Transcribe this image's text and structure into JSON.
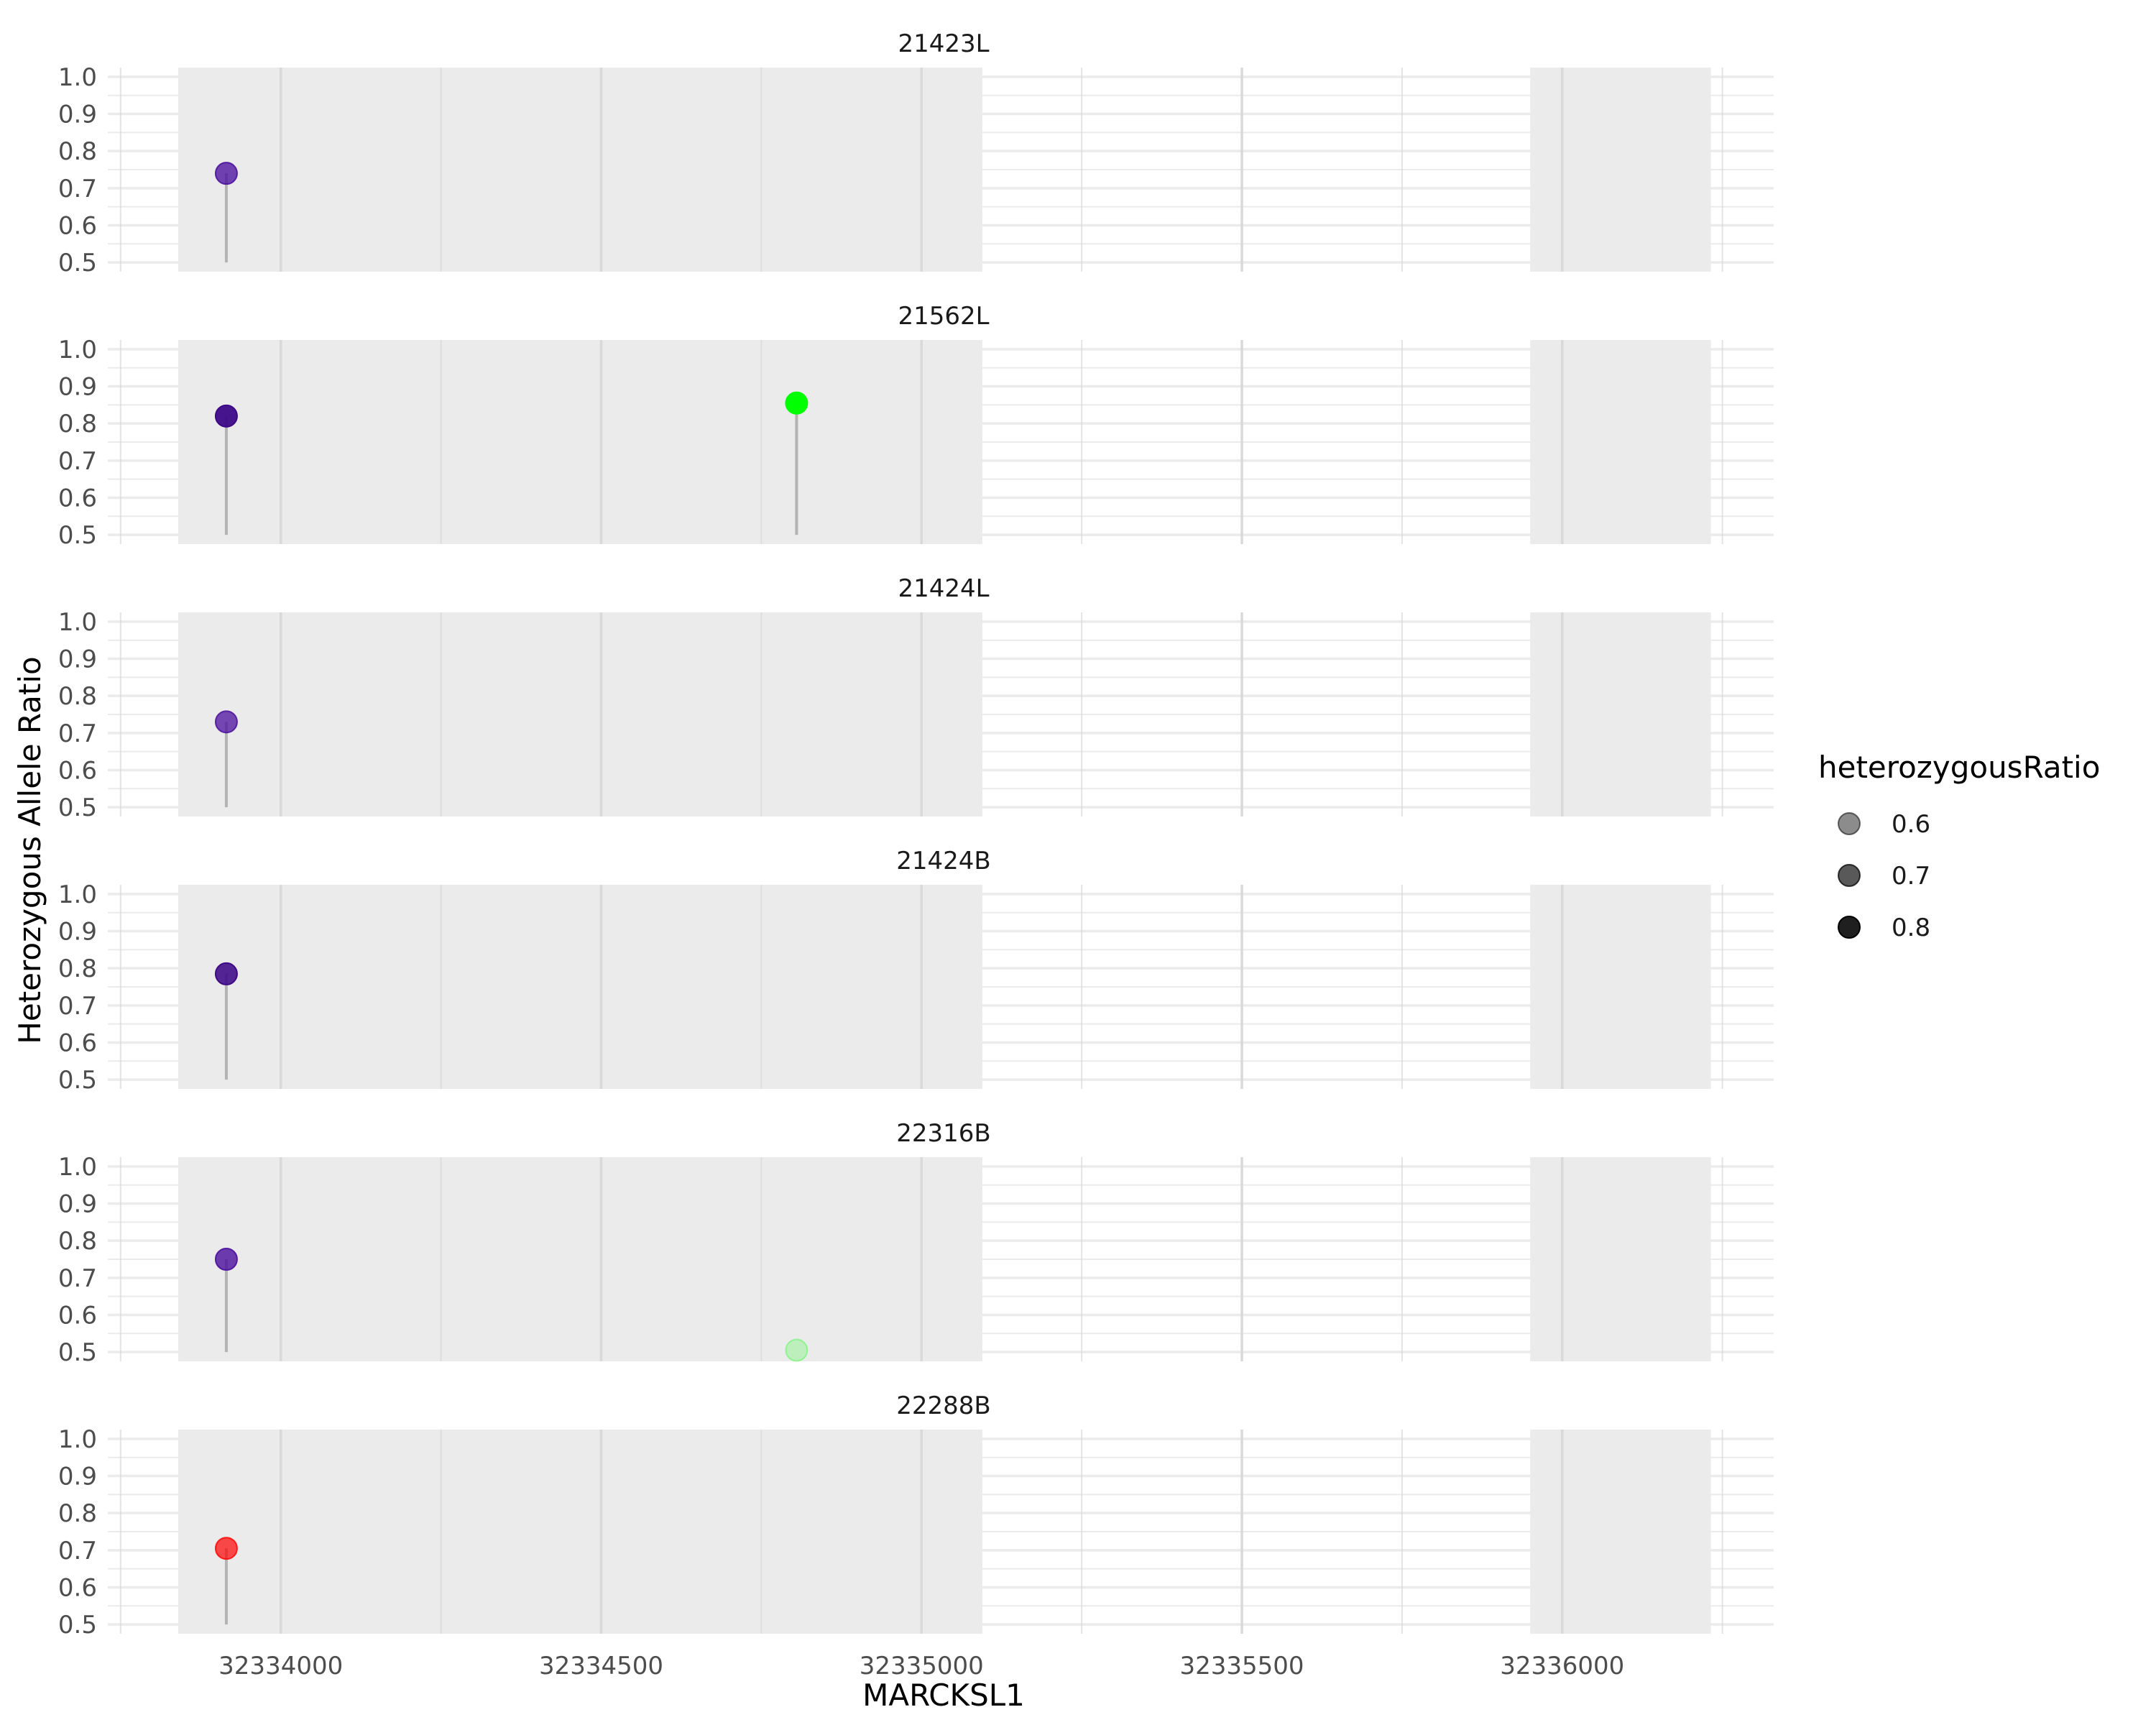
{
  "chart_data": {
    "type": "scatter",
    "subtype": "lollipop",
    "facet_layout": "stacked vertically, shared x axis",
    "xlabel": "MARCKSL1",
    "ylabel": "Heterozygous Allele Ratio",
    "xlim": [
      32333730,
      32336330
    ],
    "ylim": [
      0.475,
      1.025
    ],
    "x_ticks": [
      32334000,
      32334500,
      32335000,
      32335500,
      32336000
    ],
    "y_ticks": [
      0.5,
      0.6,
      0.7,
      0.8,
      0.9,
      1.0
    ],
    "lollipop_baseline": 0.5,
    "grid": true,
    "shaded_regions": [
      {
        "x": [
          32333840,
          32335095
        ]
      },
      {
        "x": [
          32335950,
          32336232
        ]
      }
    ],
    "panels": [
      {
        "title": "21423L",
        "points": [
          {
            "x": 32333915,
            "y": 0.74,
            "color": "#4b0f9e",
            "alpha": 0.78
          }
        ]
      },
      {
        "title": "21562L",
        "points": [
          {
            "x": 32333915,
            "y": 0.82,
            "color": "#3d0887",
            "alpha": 0.95
          },
          {
            "x": 32334805,
            "y": 0.855,
            "color": "#00ff00",
            "alpha": 1.0
          }
        ]
      },
      {
        "title": "21424L",
        "points": [
          {
            "x": 32333915,
            "y": 0.73,
            "color": "#4b0f9e",
            "alpha": 0.75
          }
        ]
      },
      {
        "title": "21424B",
        "points": [
          {
            "x": 32333915,
            "y": 0.785,
            "color": "#3d0887",
            "alpha": 0.88
          }
        ]
      },
      {
        "title": "22316B",
        "points": [
          {
            "x": 32333915,
            "y": 0.75,
            "color": "#4b0f9e",
            "alpha": 0.8
          },
          {
            "x": 32334805,
            "y": 0.505,
            "color": "#00ff00",
            "alpha": 0.2
          }
        ]
      },
      {
        "title": "22288B",
        "points": [
          {
            "x": 32333915,
            "y": 0.705,
            "color": "#ff0000",
            "alpha": 0.7
          }
        ]
      }
    ],
    "legend": {
      "title": "heterozygousRatio",
      "position": "right",
      "entries": [
        {
          "label": "0.6",
          "alpha": 0.45
        },
        {
          "label": "0.7",
          "alpha": 0.65
        },
        {
          "label": "0.8",
          "alpha": 0.88
        }
      ]
    }
  },
  "colors": {
    "panel_shade": "#ebebeb",
    "grid_major": "#ebebeb",
    "grid_major_on_shade": "#d9d9d9",
    "stem": "#b3b3b3",
    "legend_key": "#000000"
  }
}
